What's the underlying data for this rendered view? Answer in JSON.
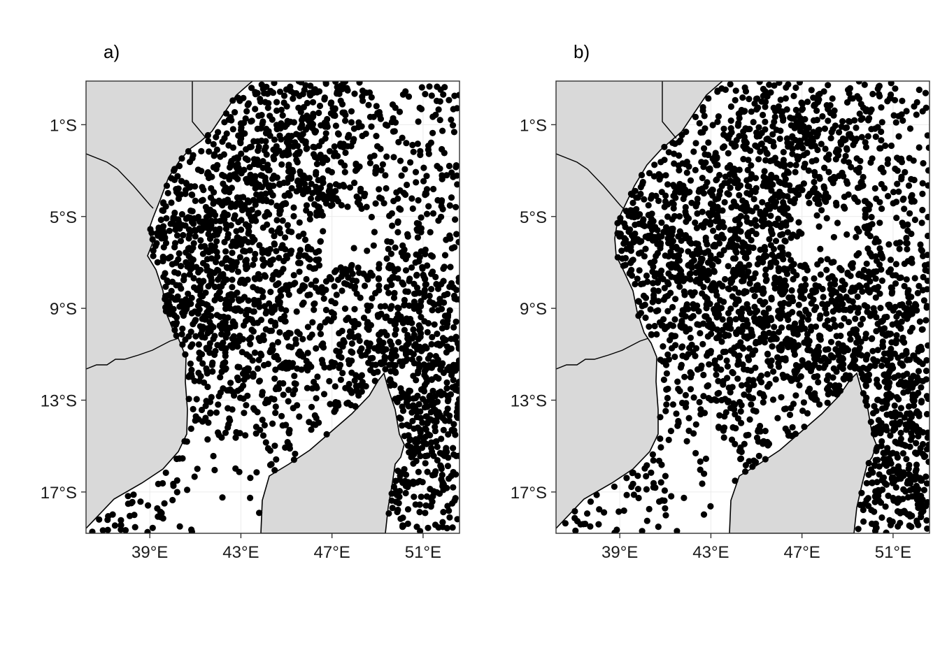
{
  "colors": {
    "land": "#d9d9d9",
    "sea": "#ffffff",
    "coastline": "#000000",
    "points": "#000000",
    "grid": "#ebebeb",
    "frame": "#333333"
  },
  "panels": [
    {
      "id": "a",
      "label": "a)"
    },
    {
      "id": "b",
      "label": "b)"
    }
  ],
  "axes": {
    "x": {
      "min": 36.2,
      "max": 52.6,
      "ticks": [
        39,
        43,
        47,
        51
      ],
      "tick_labels": [
        "39°E",
        "43°E",
        "47°E",
        "51°E"
      ]
    },
    "y": {
      "min": -18.8,
      "max": 0.9,
      "ticks": [
        -1,
        -5,
        -9,
        -13,
        -17
      ],
      "tick_labels": [
        "1°S",
        "5°S",
        "9°S",
        "13°S",
        "17°S"
      ]
    },
    "grid": true
  },
  "chart_data": [
    {
      "type": "scatter",
      "panel": "a)",
      "point_count": 2400,
      "x_unit": "degrees east",
      "y_unit": "degrees south",
      "point_density_centres": [
        [
          42.5,
          -9.5
        ],
        [
          50.5,
          -10.2
        ],
        [
          45.0,
          -2.5
        ],
        [
          40.5,
          -5.5
        ],
        [
          51.0,
          -15.0
        ]
      ]
    },
    {
      "type": "scatter",
      "panel": "b)",
      "point_count": 2600,
      "x_unit": "degrees east",
      "y_unit": "degrees south",
      "point_density_centres": [
        [
          45.0,
          -9.0
        ],
        [
          51.0,
          -16.5
        ],
        [
          47.0,
          -3.0
        ],
        [
          41.0,
          -6.0
        ],
        [
          50.5,
          -11.0
        ]
      ]
    }
  ]
}
